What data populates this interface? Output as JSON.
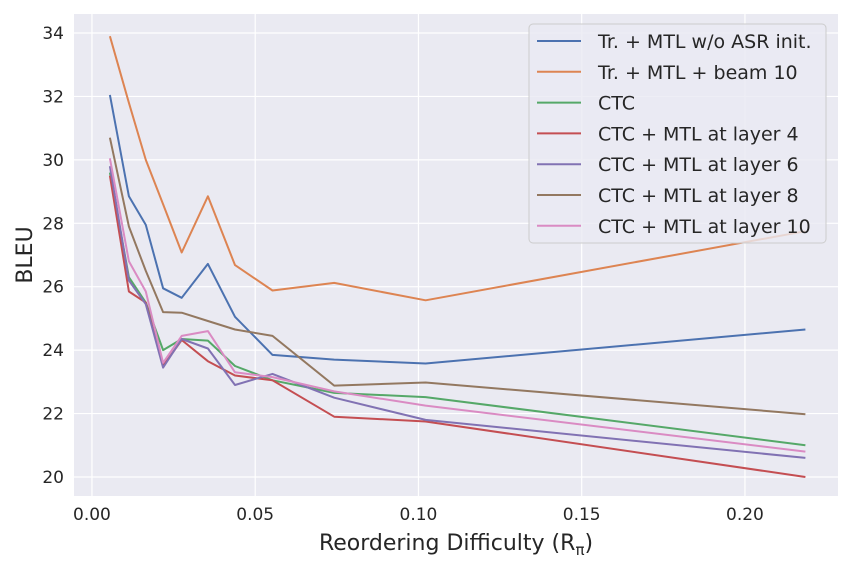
{
  "chart_data": {
    "type": "line",
    "xlabel": "Reordering Difficulty (R",
    "xlabel_sub": "π",
    "xlabel_close": ")",
    "ylabel": "BLEU",
    "xlim": [
      -0.0055,
      0.2285
    ],
    "ylim": [
      19.4,
      34.6
    ],
    "xticks": [
      0.0,
      0.05,
      0.1,
      0.15,
      0.2
    ],
    "xtick_labels": [
      "0.00",
      "0.05",
      "0.10",
      "0.15",
      "0.20"
    ],
    "yticks": [
      20,
      22,
      24,
      26,
      28,
      30,
      32,
      34
    ],
    "ytick_labels": [
      "20",
      "22",
      "24",
      "26",
      "28",
      "30",
      "32",
      "34"
    ],
    "grid": true,
    "legend_position": "top-right",
    "x": [
      0.0055,
      0.0113,
      0.0165,
      0.0218,
      0.0275,
      0.0355,
      0.0438,
      0.0553,
      0.0742,
      0.1022,
      0.2185
    ],
    "series": [
      {
        "name": "Tr. + MTL w/o ASR init.",
        "color": "#4c72b0",
        "values": [
          32.05,
          28.85,
          27.95,
          25.95,
          25.65,
          26.72,
          25.05,
          23.85,
          23.7,
          23.58,
          24.65
        ]
      },
      {
        "name": "Tr. + MTL + beam 10",
        "color": "#dd8452",
        "values": [
          33.9,
          31.8,
          30.0,
          28.6,
          27.08,
          28.85,
          26.68,
          25.88,
          26.12,
          25.57,
          27.75
        ]
      },
      {
        "name": "CTC",
        "color": "#55a868",
        "values": [
          29.6,
          26.3,
          25.5,
          24.0,
          24.35,
          24.3,
          23.5,
          23.05,
          22.65,
          22.52,
          21.0
        ]
      },
      {
        "name": "CTC + MTL at layer 4",
        "color": "#c44e52",
        "values": [
          29.5,
          25.85,
          25.5,
          23.5,
          24.32,
          23.65,
          23.2,
          23.05,
          21.9,
          21.75,
          20.0
        ]
      },
      {
        "name": "CTC + MTL at layer 6",
        "color": "#8172b3",
        "values": [
          29.8,
          26.2,
          25.45,
          23.45,
          24.35,
          24.05,
          22.9,
          23.25,
          22.5,
          21.8,
          20.6
        ]
      },
      {
        "name": "CTC + MTL at layer 8",
        "color": "#937860",
        "values": [
          30.7,
          27.9,
          26.5,
          25.2,
          25.18,
          24.92,
          24.65,
          24.45,
          22.88,
          22.98,
          21.98
        ]
      },
      {
        "name": "CTC + MTL at layer 10",
        "color": "#da8bc3",
        "values": [
          30.05,
          26.8,
          25.85,
          23.6,
          24.45,
          24.6,
          23.3,
          23.15,
          22.7,
          22.25,
          20.8
        ]
      }
    ]
  }
}
